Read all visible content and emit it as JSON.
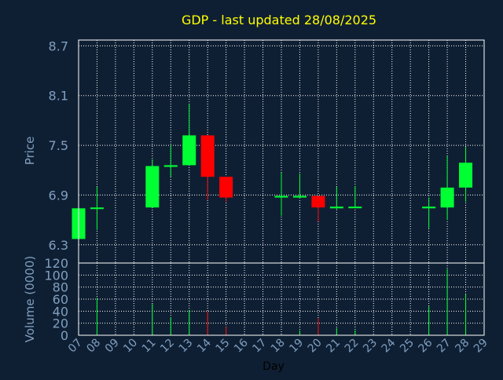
{
  "chart_data": {
    "type": "candlestick",
    "title": "GDP - last updated 28/08/2025",
    "xlabel": "Day",
    "price_panel": {
      "ylabel": "Price",
      "ylim": [
        6.08,
        8.77
      ],
      "yticks": [
        "6.3",
        "6.9",
        "7.5",
        "8.1",
        "8.7"
      ]
    },
    "volume_panel": {
      "ylabel": "Volume (0000)",
      "ylim": [
        0,
        120
      ],
      "yticks": [
        "0",
        "20",
        "40",
        "60",
        "80",
        "100",
        "120"
      ]
    },
    "x_ticks": [
      "07",
      "08",
      "09",
      "10",
      "11",
      "12",
      "13",
      "14",
      "15",
      "16",
      "17",
      "18",
      "19",
      "20",
      "21",
      "22",
      "23",
      "24",
      "25",
      "26",
      "27",
      "28",
      "29"
    ],
    "grid": true,
    "colors": {
      "background": "#0f1f33",
      "up": "#00ff33",
      "down": "#ff0000",
      "grid": "#ffffff",
      "axis_text": "#7f9fbf",
      "title": "#ffff00"
    },
    "series": [
      {
        "day": "07",
        "open": 6.37,
        "high": 6.76,
        "low": 6.37,
        "close": 6.74,
        "volume": 0
      },
      {
        "day": "08",
        "open": 6.74,
        "high": 7.0,
        "low": 6.48,
        "close": 6.75,
        "volume": 62
      },
      {
        "day": "11",
        "open": 6.75,
        "high": 7.33,
        "low": 6.75,
        "close": 7.25,
        "volume": 52
      },
      {
        "day": "12",
        "open": 7.24,
        "high": 7.5,
        "low": 7.12,
        "close": 7.26,
        "volume": 30
      },
      {
        "day": "13",
        "open": 7.26,
        "high": 8.0,
        "low": 7.26,
        "close": 7.62,
        "volume": 42
      },
      {
        "day": "14",
        "open": 7.62,
        "high": 7.62,
        "low": 6.84,
        "close": 7.12,
        "volume": 40
      },
      {
        "day": "15",
        "open": 7.12,
        "high": 7.12,
        "low": 6.82,
        "close": 6.87,
        "volume": 14
      },
      {
        "day": "18",
        "open": 6.87,
        "high": 7.17,
        "low": 6.65,
        "close": 6.89,
        "volume": 0
      },
      {
        "day": "19",
        "open": 6.87,
        "high": 7.16,
        "low": 6.86,
        "close": 6.89,
        "volume": 8
      },
      {
        "day": "20",
        "open": 6.89,
        "high": 6.89,
        "low": 6.58,
        "close": 6.75,
        "volume": 28
      },
      {
        "day": "21",
        "open": 6.74,
        "high": 7.0,
        "low": 6.73,
        "close": 6.76,
        "volume": 12
      },
      {
        "day": "22",
        "open": 6.75,
        "high": 7.01,
        "low": 6.75,
        "close": 6.76,
        "volume": 8
      },
      {
        "day": "26",
        "open": 6.74,
        "high": 6.87,
        "low": 6.5,
        "close": 6.76,
        "volume": 48
      },
      {
        "day": "27",
        "open": 6.75,
        "high": 7.37,
        "low": 6.6,
        "close": 6.99,
        "volume": 110
      },
      {
        "day": "28",
        "open": 6.99,
        "high": 7.48,
        "low": 6.82,
        "close": 7.29,
        "volume": 68
      }
    ]
  }
}
